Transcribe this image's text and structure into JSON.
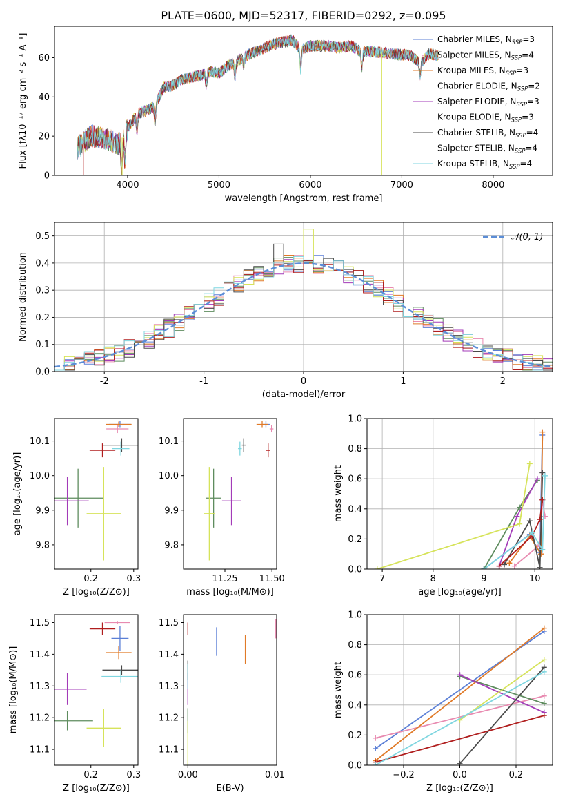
{
  "figure": {
    "title": "PLATE=0600, MJD=52317, FIBERID=0292, z=0.095"
  },
  "colors": {
    "Chabrier MILES": "#5b7fd6",
    "Salpeter MILES": "#e88ab0",
    "Kroupa MILES": "#e07a28",
    "Chabrier ELODIE": "#5e8c5e",
    "Salpeter ELODIE": "#a33bb8",
    "Kroupa ELODIE": "#d6e35a",
    "Chabrier STELIB": "#4a4a4a",
    "Salpeter STELIB": "#b01e1e",
    "Kroupa STELIB": "#7fd6e0"
  },
  "chart_data": [
    {
      "id": "spectrum",
      "type": "line",
      "xlabel": "wavelength [Angstrom, rest frame]",
      "ylabel": "Flux [fλ10⁻¹⁷ erg cm⁻² s⁻¹ A⁻¹]",
      "xlim": [
        3200,
        8650
      ],
      "ylim": [
        0,
        76
      ],
      "xticks": [
        4000,
        5000,
        6000,
        7000,
        8000
      ],
      "yticks": [
        0,
        20,
        40,
        60
      ],
      "legend_position": "top-right",
      "legend": [
        {
          "name": "Chabrier MILES",
          "sub": "SSP",
          "n": "3"
        },
        {
          "name": "Salpeter MILES",
          "sub": "SSP",
          "n": "4"
        },
        {
          "name": "Kroupa MILES",
          "sub": "SSP",
          "n": "3"
        },
        {
          "name": "Chabrier ELODIE",
          "sub": "SSP",
          "n": "2"
        },
        {
          "name": "Salpeter ELODIE",
          "sub": "SSP",
          "n": "3"
        },
        {
          "name": "Kroupa ELODIE",
          "sub": "SSP",
          "n": "3"
        },
        {
          "name": "Chabrier STELIB",
          "sub": "SSP",
          "n": "4"
        },
        {
          "name": "Salpeter STELIB",
          "sub": "SSP",
          "n": "4"
        },
        {
          "name": "Kroupa STELIB",
          "sub": "SSP",
          "n": "4"
        }
      ],
      "continuum": [
        [
          3450,
          14
        ],
        [
          3600,
          20
        ],
        [
          3750,
          19
        ],
        [
          3900,
          16
        ],
        [
          4000,
          24
        ],
        [
          4100,
          31
        ],
        [
          4250,
          34
        ],
        [
          4300,
          36
        ],
        [
          4400,
          45
        ],
        [
          4500,
          46
        ],
        [
          4600,
          49
        ],
        [
          4800,
          51
        ],
        [
          4900,
          53
        ],
        [
          5000,
          52
        ],
        [
          5100,
          56
        ],
        [
          5200,
          58
        ],
        [
          5300,
          61
        ],
        [
          5450,
          64
        ],
        [
          5600,
          67
        ],
        [
          5800,
          69
        ],
        [
          5900,
          64
        ],
        [
          6000,
          66
        ],
        [
          6200,
          66
        ],
        [
          6300,
          65
        ],
        [
          6450,
          66
        ],
        [
          6550,
          63
        ],
        [
          6700,
          63
        ],
        [
          6900,
          62
        ],
        [
          7100,
          61
        ],
        [
          7200,
          57
        ],
        [
          7300,
          62
        ],
        [
          7400,
          61
        ]
      ],
      "spikes": [
        {
          "series": "Salpeter STELIB",
          "x": 3515,
          "to": 0
        },
        {
          "series": "Kroupa ELODIE",
          "x": 3940,
          "to": 0
        },
        {
          "series": "Kroupa ELODIE",
          "x": 6780,
          "to": 0
        },
        {
          "series": "Salpeter STELIB",
          "x": 7405,
          "to": 0
        }
      ]
    },
    {
      "id": "residuals",
      "type": "histogram",
      "xlabel": "(data-model)/error",
      "ylabel": "Normed distribution",
      "xlim": [
        -2.5,
        2.5
      ],
      "ylim": [
        0,
        0.55
      ],
      "xticks": [
        -2,
        -1,
        0,
        1,
        2
      ],
      "yticks": [
        0.0,
        0.1,
        0.2,
        0.3,
        0.4,
        0.5
      ],
      "bin_width": 0.1,
      "grid": true,
      "legend_position": "top-right",
      "reference_curve": {
        "label": "𝒩(0, 1)",
        "mean": 0,
        "sigma": 1,
        "color": "#5b8dd6"
      },
      "notable_bins": [
        {
          "series": "Kroupa ELODIE",
          "x": 0.0,
          "value": 0.525
        },
        {
          "series": "Chabrier STELIB",
          "x": -0.3,
          "value": 0.47
        }
      ]
    },
    {
      "id": "z-vs-age",
      "type": "scatter",
      "xlabel": "Z [log₁₀(Z/Z⊙)]",
      "ylabel": "age  [log₁₀(age/yr)]",
      "xlim": [
        0.115,
        0.31
      ],
      "ylim": [
        9.73,
        10.165
      ],
      "xticks": [
        0.2,
        0.3
      ],
      "yticks": [
        9.8,
        9.9,
        10.0,
        10.1
      ],
      "points": [
        {
          "series": "Chabrier MILES",
          "x": 0.268,
          "y": 10.148,
          "xerr": 0.026,
          "yerr": 0.01
        },
        {
          "series": "Salpeter MILES",
          "x": 0.262,
          "y": 10.135,
          "xerr": 0.026,
          "yerr": 0.012
        },
        {
          "series": "Kroupa MILES",
          "x": 0.265,
          "y": 10.148,
          "xerr": 0.03,
          "yerr": 0.008
        },
        {
          "series": "Chabrier ELODIE",
          "x": 0.17,
          "y": 9.935,
          "xerr": 0.06,
          "yerr": 0.085
        },
        {
          "series": "Salpeter ELODIE",
          "x": 0.145,
          "y": 9.927,
          "xerr": 0.05,
          "yerr": 0.07
        },
        {
          "series": "Kroupa ELODIE",
          "x": 0.23,
          "y": 9.89,
          "xerr": 0.04,
          "yerr": 0.135
        },
        {
          "series": "Chabrier STELIB",
          "x": 0.272,
          "y": 10.088,
          "xerr": 0.045,
          "yerr": 0.02
        },
        {
          "series": "Salpeter STELIB",
          "x": 0.227,
          "y": 10.073,
          "xerr": 0.03,
          "yerr": 0.02
        },
        {
          "series": "Kroupa STELIB",
          "x": 0.27,
          "y": 10.078,
          "xerr": 0.02,
          "yerr": 0.02
        }
      ]
    },
    {
      "id": "mass-vs-age",
      "type": "scatter",
      "xlabel": "mass [log₁₀(M/M⊙)]",
      "ylabel": "",
      "xlim": [
        11.03,
        11.525
      ],
      "ylim": [
        9.73,
        10.165
      ],
      "xticks": [
        11.25,
        11.5
      ],
      "xtick_labels": [
        "11.25",
        "11.50"
      ],
      "yticks": [
        9.8,
        9.9,
        10.0,
        10.1
      ],
      "points": [
        {
          "series": "Chabrier MILES",
          "x": 11.468,
          "y": 10.148,
          "xerr": 0.02,
          "yerr": 0.01
        },
        {
          "series": "Salpeter MILES",
          "x": 11.498,
          "y": 10.135,
          "xerr": 0.01,
          "yerr": 0.01
        },
        {
          "series": "Kroupa MILES",
          "x": 11.448,
          "y": 10.148,
          "xerr": 0.03,
          "yerr": 0.01
        },
        {
          "series": "Chabrier ELODIE",
          "x": 11.19,
          "y": 9.935,
          "xerr": 0.04,
          "yerr": 0.085
        },
        {
          "series": "Salpeter ELODIE",
          "x": 11.285,
          "y": 9.927,
          "xerr": 0.05,
          "yerr": 0.07
        },
        {
          "series": "Kroupa ELODIE",
          "x": 11.167,
          "y": 9.89,
          "xerr": 0.03,
          "yerr": 0.135
        },
        {
          "series": "Chabrier STELIB",
          "x": 11.35,
          "y": 10.088,
          "xerr": 0.01,
          "yerr": 0.02
        },
        {
          "series": "Salpeter STELIB",
          "x": 11.48,
          "y": 10.073,
          "xerr": 0.01,
          "yerr": 0.02
        },
        {
          "series": "Kroupa STELIB",
          "x": 11.33,
          "y": 10.078,
          "xerr": 0.01,
          "yerr": 0.02
        }
      ]
    },
    {
      "id": "age-vs-weight",
      "type": "line",
      "xlabel": "age  [log₁₀(age/yr)]",
      "ylabel": "mass weight",
      "xlim": [
        6.7,
        10.35
      ],
      "ylim": [
        0,
        1.0
      ],
      "xticks": [
        7,
        8,
        9,
        10
      ],
      "yticks": [
        0.0,
        0.2,
        0.4,
        0.6,
        0.8,
        1.0
      ],
      "grid": true,
      "series": [
        {
          "name": "Chabrier MILES",
          "points": [
            [
              9.0,
              0.0
            ],
            [
              9.9,
              0.23
            ],
            [
              10.1,
              0.11
            ],
            [
              10.15,
              0.89
            ]
          ]
        },
        {
          "name": "Salpeter MILES",
          "points": [
            [
              9.6,
              0.02
            ],
            [
              10.1,
              0.16
            ],
            [
              10.15,
              0.46
            ],
            [
              10.2,
              0.35
            ]
          ]
        },
        {
          "name": "Kroupa MILES",
          "points": [
            [
              9.5,
              0.04
            ],
            [
              9.9,
              0.22
            ],
            [
              10.12,
              0.1
            ],
            [
              10.15,
              0.91
            ]
          ]
        },
        {
          "name": "Chabrier ELODIE",
          "points": [
            [
              9.0,
              0.0
            ],
            [
              9.7,
              0.41
            ],
            [
              10.05,
              0.59
            ]
          ]
        },
        {
          "name": "Salpeter ELODIE",
          "points": [
            [
              9.3,
              0.02
            ],
            [
              9.65,
              0.35
            ],
            [
              10.05,
              0.6
            ]
          ]
        },
        {
          "name": "Kroupa ELODIE",
          "points": [
            [
              6.9,
              0.0
            ],
            [
              9.7,
              0.3
            ],
            [
              9.9,
              0.7
            ]
          ]
        },
        {
          "name": "Chabrier STELIB",
          "points": [
            [
              9.4,
              0.03
            ],
            [
              9.9,
              0.32
            ],
            [
              10.1,
              0.01
            ],
            [
              10.15,
              0.64
            ]
          ]
        },
        {
          "name": "Salpeter STELIB",
          "points": [
            [
              9.3,
              0.02
            ],
            [
              9.95,
              0.22
            ],
            [
              10.1,
              0.33
            ],
            [
              10.15,
              0.46
            ]
          ]
        },
        {
          "name": "Kroupa STELIB",
          "points": [
            [
              9.0,
              0.0
            ],
            [
              9.95,
              0.24
            ],
            [
              10.15,
              0.13
            ],
            [
              10.2,
              0.62
            ]
          ]
        }
      ]
    },
    {
      "id": "z-vs-mass",
      "type": "scatter",
      "xlabel": "Z [log₁₀(Z/Z⊙)]",
      "ylabel": "mass [log₁₀(M/M⊙)]",
      "xlim": [
        0.115,
        0.31
      ],
      "ylim": [
        11.05,
        11.525
      ],
      "xticks": [
        0.2,
        0.3
      ],
      "yticks": [
        11.1,
        11.2,
        11.3,
        11.4,
        11.5
      ],
      "points": [
        {
          "series": "Chabrier MILES",
          "x": 0.268,
          "y": 11.45,
          "xerr": 0.02,
          "yerr": 0.04
        },
        {
          "series": "Salpeter MILES",
          "x": 0.262,
          "y": 11.5,
          "xerr": 0.03,
          "yerr": 0.005
        },
        {
          "series": "Kroupa MILES",
          "x": 0.265,
          "y": 11.405,
          "xerr": 0.03,
          "yerr": 0.02
        },
        {
          "series": "Chabrier ELODIE",
          "x": 0.145,
          "y": 11.19,
          "xerr": 0.06,
          "yerr": 0.03
        },
        {
          "series": "Salpeter ELODIE",
          "x": 0.145,
          "y": 11.29,
          "xerr": 0.045,
          "yerr": 0.05
        },
        {
          "series": "Kroupa ELODIE",
          "x": 0.23,
          "y": 11.167,
          "xerr": 0.04,
          "yerr": 0.06
        },
        {
          "series": "Chabrier STELIB",
          "x": 0.272,
          "y": 11.35,
          "xerr": 0.045,
          "yerr": 0.015
        },
        {
          "series": "Salpeter STELIB",
          "x": 0.227,
          "y": 11.48,
          "xerr": 0.03,
          "yerr": 0.02
        },
        {
          "series": "Kroupa STELIB",
          "x": 0.27,
          "y": 11.33,
          "xerr": 0.045,
          "yerr": 0.02
        }
      ]
    },
    {
      "id": "ebv-vs-mass",
      "type": "scatter",
      "xlabel": "E(B-V)",
      "ylabel": "",
      "xlim": [
        -0.0005,
        0.0102
      ],
      "ylim": [
        11.05,
        11.525
      ],
      "xticks": [
        0.0,
        0.01
      ],
      "xtick_labels": [
        "0.00",
        "0.01"
      ],
      "yticks": [
        11.1,
        11.2,
        11.3,
        11.4,
        11.5
      ],
      "points": [
        {
          "series": "Chabrier MILES",
          "x": 0.0033,
          "y": 11.44,
          "xerr": 0,
          "yerr": 0.045
        },
        {
          "series": "Salpeter MILES",
          "x": 0.0101,
          "y": 11.48,
          "xerr": 0,
          "yerr": 0.03
        },
        {
          "series": "Kroupa MILES",
          "x": 0.0066,
          "y": 11.415,
          "xerr": 0,
          "yerr": 0.045
        },
        {
          "series": "Chabrier ELODIE",
          "x": 0.0,
          "y": 11.19,
          "xerr": 0,
          "yerr": 0.04
        },
        {
          "series": "Salpeter ELODIE",
          "x": 0.0,
          "y": 11.29,
          "xerr": 0,
          "yerr": 0.05
        },
        {
          "series": "Kroupa ELODIE",
          "x": 0.0,
          "y": 11.12,
          "xerr": 0,
          "yerr": 0.07
        },
        {
          "series": "Chabrier STELIB",
          "x": 0.0,
          "y": 11.35,
          "xerr": 0,
          "yerr": 0.03
        },
        {
          "series": "Salpeter STELIB",
          "x": 0.0,
          "y": 11.48,
          "xerr": 0,
          "yerr": 0.02
        },
        {
          "series": "Kroupa STELIB",
          "x": 0.0,
          "y": 11.33,
          "xerr": 0,
          "yerr": 0.04
        }
      ]
    },
    {
      "id": "z-vs-weight",
      "type": "line",
      "xlabel": "Z [log₁₀(Z/Z⊙)]",
      "ylabel": "mass weight",
      "xlim": [
        -0.33,
        0.33
      ],
      "ylim": [
        0,
        1.0
      ],
      "xticks": [
        -0.2,
        0.0,
        0.2
      ],
      "xtick_labels": [
        "−0.2",
        "0.0",
        "0.2"
      ],
      "yticks": [
        0.0,
        0.2,
        0.4,
        0.6,
        0.8,
        1.0
      ],
      "grid": true,
      "series": [
        {
          "name": "Chabrier MILES",
          "points": [
            [
              -0.3,
              0.11
            ],
            [
              0.3,
              0.89
            ]
          ]
        },
        {
          "name": "Salpeter MILES",
          "points": [
            [
              -0.3,
              0.18
            ],
            [
              0.3,
              0.46
            ]
          ]
        },
        {
          "name": "Kroupa MILES",
          "points": [
            [
              -0.3,
              0.03
            ],
            [
              0.3,
              0.91
            ]
          ]
        },
        {
          "name": "Chabrier ELODIE",
          "points": [
            [
              0.0,
              0.59
            ],
            [
              0.3,
              0.41
            ]
          ]
        },
        {
          "name": "Salpeter ELODIE",
          "points": [
            [
              0.0,
              0.6
            ],
            [
              0.3,
              0.35
            ]
          ]
        },
        {
          "name": "Kroupa ELODIE",
          "points": [
            [
              0.0,
              0.3
            ],
            [
              0.3,
              0.7
            ]
          ]
        },
        {
          "name": "Chabrier STELIB",
          "points": [
            [
              0.0,
              0.01
            ],
            [
              0.3,
              0.65
            ]
          ]
        },
        {
          "name": "Salpeter STELIB",
          "points": [
            [
              -0.3,
              0.02
            ],
            [
              0.3,
              0.33
            ]
          ]
        },
        {
          "name": "Kroupa STELIB",
          "points": [
            [
              -0.3,
              0.0
            ],
            [
              0.3,
              0.62
            ]
          ]
        }
      ]
    }
  ]
}
